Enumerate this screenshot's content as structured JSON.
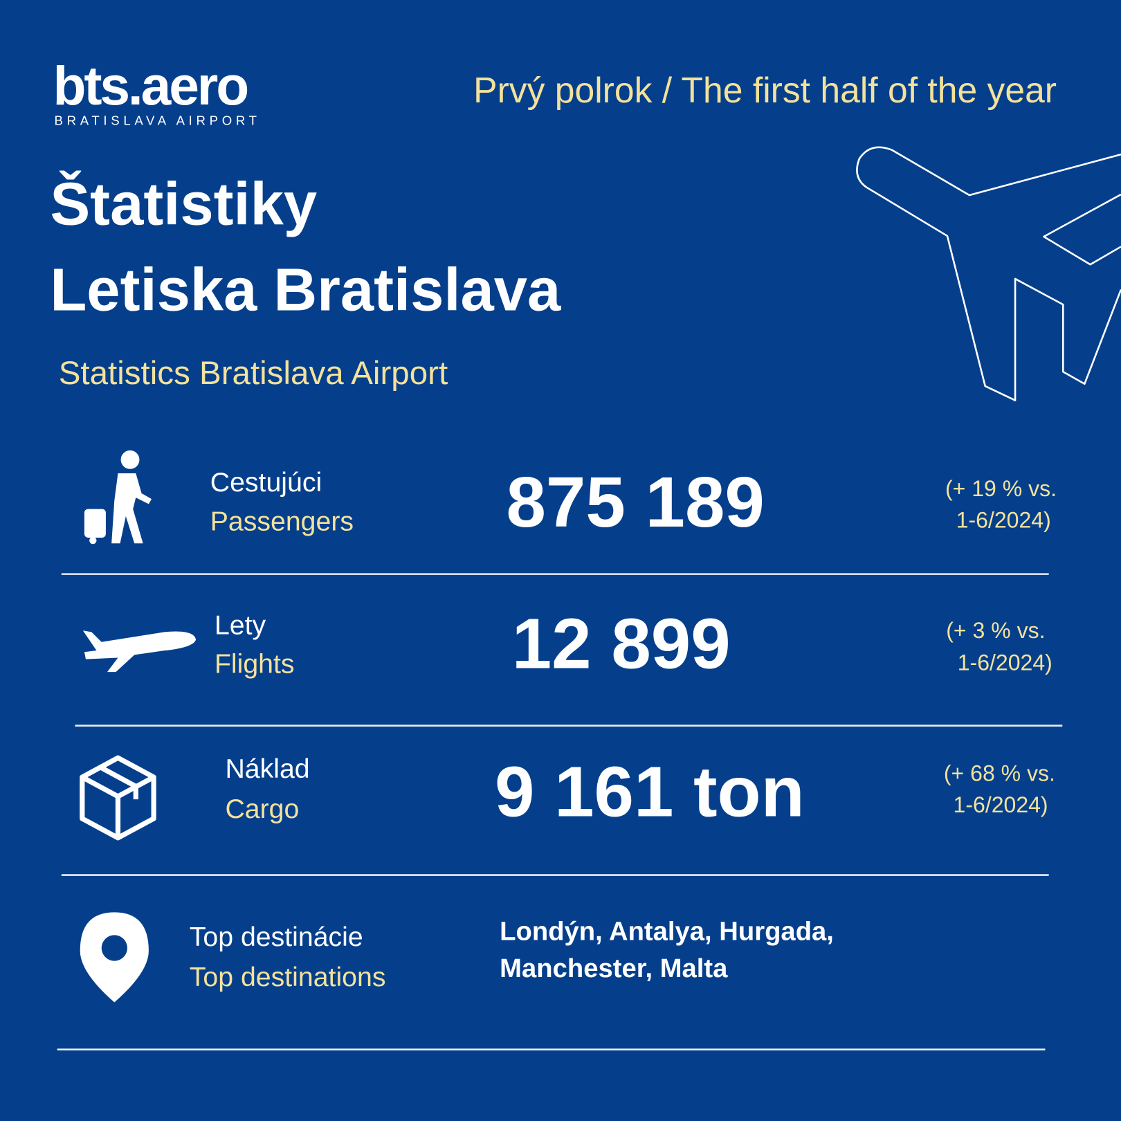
{
  "header": {
    "logo": "bts.aero",
    "logo_subtitle": "BRATISLAVA AIRPORT",
    "period": "Prvý polrok / The first half of the year"
  },
  "title": {
    "lines": [
      "Štatistiky",
      "Letiska Bratislava"
    ],
    "subtitle": "Statistics Bratislava Airport"
  },
  "stats": [
    {
      "label_sk": "Cestujúci",
      "label_en": "Passengers",
      "value": "875 189",
      "change": [
        "(+ 19 % vs.",
        "1-6/2024)"
      ]
    },
    {
      "label_sk": "Lety",
      "label_en": "Flights",
      "value": "12 899",
      "change": [
        "(+ 3 % vs.",
        "1-6/2024)"
      ]
    },
    {
      "label_sk": "Náklad",
      "label_en": "Cargo",
      "value": "9 161 ton",
      "change": [
        "(+ 68 % vs.",
        "1-6/2024)"
      ]
    }
  ],
  "destinations": {
    "label_sk": "Top destinácie",
    "label_en": "Top destinations",
    "lines": [
      "Londýn, Antalya, Hurgada,",
      "Manchester, Malta"
    ]
  }
}
